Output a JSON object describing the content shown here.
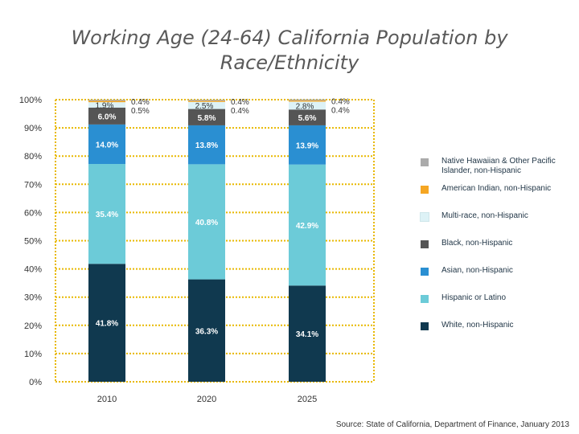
{
  "title": {
    "line1": "Working Age (24-64) California Population by",
    "line2": "Race/Ethnicity"
  },
  "source": "Source: State of California, Department of Finance, January 2013",
  "chart_data": {
    "type": "bar",
    "stacked": true,
    "title": "Working Age (24-64) California Population by Race/Ethnicity",
    "categories": [
      "2010",
      "2020",
      "2025"
    ],
    "ylim": [
      0,
      100
    ],
    "yticks": [
      0,
      10,
      20,
      30,
      40,
      50,
      60,
      70,
      80,
      90,
      100
    ],
    "ytick_labels": [
      "0%",
      "10%",
      "20%",
      "30%",
      "40%",
      "50%",
      "60%",
      "70%",
      "80%",
      "90%",
      "100%"
    ],
    "grid": true,
    "legend_position": "right",
    "series": [
      {
        "name": "White, non-Hispanic",
        "color": "#10394f",
        "values": [
          41.8,
          36.3,
          34.1
        ],
        "labels": [
          "41.8%",
          "36.3%",
          "34.1%"
        ]
      },
      {
        "name": "Hispanic or Latino",
        "color": "#6ccbd8",
        "values": [
          35.4,
          40.8,
          42.9
        ],
        "labels": [
          "35.4%",
          "40.8%",
          "42.9%"
        ]
      },
      {
        "name": "Asian, non-Hispanic",
        "color": "#2a8fd2",
        "values": [
          14.0,
          13.8,
          13.9
        ],
        "labels": [
          "14.0%",
          "13.8%",
          "13.9%"
        ]
      },
      {
        "name": "Black, non-Hispanic",
        "color": "#555555",
        "values": [
          6.0,
          5.8,
          5.6
        ],
        "labels": [
          "6.0%",
          "5.8%",
          "5.6%"
        ]
      },
      {
        "name": "Multi-race, non-Hispanic",
        "color": "#ddf2f6",
        "values": [
          1.9,
          2.5,
          2.8
        ],
        "labels": [
          "1.9%",
          "2.5%",
          "2.8%"
        ]
      },
      {
        "name": "American Indian, non-Hispanic",
        "color": "#f5a623",
        "values": [
          0.5,
          0.4,
          0.4
        ],
        "labels": [
          "0.5%",
          "0.4%",
          "0.4%"
        ]
      },
      {
        "name": "Native Hawaiian & Other Pacific Islander, non-Hispanic",
        "color": "#ababab",
        "values": [
          0.4,
          0.4,
          0.4
        ],
        "labels": [
          "0.4%",
          "0.4%",
          "0.4%"
        ]
      }
    ],
    "legend": [
      {
        "line1": "Native Hawaiian & Other Pacific",
        "line2": "Islander, non-Hispanic",
        "color": "#ababab"
      },
      {
        "line1": "American Indian, non-Hispanic",
        "color": "#f5a623"
      },
      {
        "line1": "Multi-race, non-Hispanic",
        "color": "#ddf2f6"
      },
      {
        "line1": "Black, non-Hispanic",
        "color": "#555555"
      },
      {
        "line1": "Asian, non-Hispanic",
        "color": "#2a8fd2"
      },
      {
        "line1": "Hispanic or Latino",
        "color": "#6ccbd8"
      },
      {
        "line1": "White, non-Hispanic",
        "color": "#10394f"
      }
    ],
    "gridline_color": "#e8b800"
  }
}
